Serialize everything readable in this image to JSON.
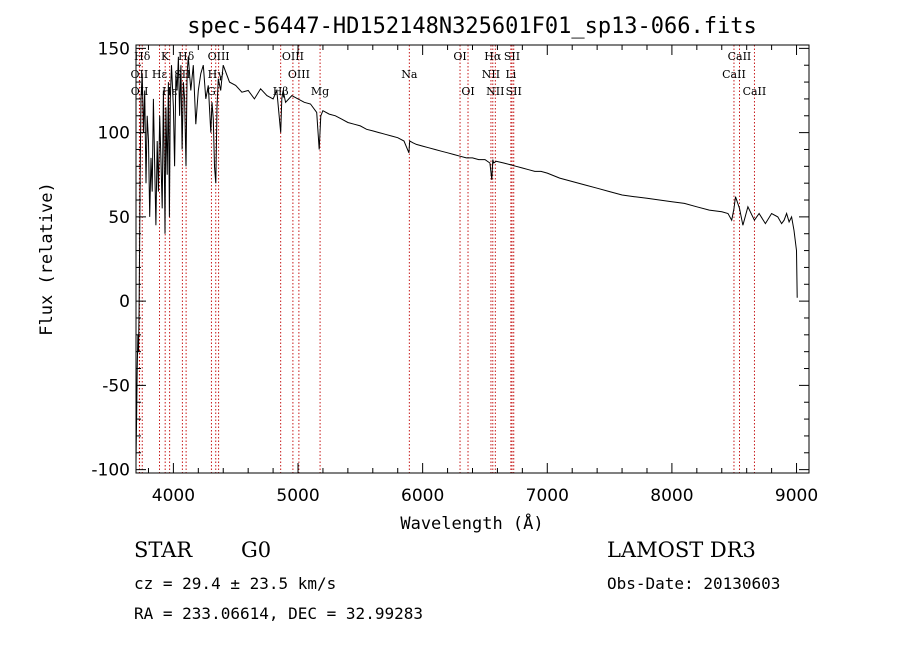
{
  "info": {
    "object_class": "STAR",
    "subclass": "G0",
    "redshift_text": "cz = 29.4 ± 23.5 km/s",
    "coords_text": "RA = 233.06614, DEC =  32.99283",
    "survey": "LAMOST DR3",
    "obs_date_text": "Obs-Date: 20130603"
  },
  "chart_data": {
    "type": "line",
    "title": "spec-56447-HD152148N325601F01_sp13-066.fits",
    "xlabel": "Wavelength (Å)",
    "ylabel": "Flux (relative)",
    "xlim": [
      3700,
      9100
    ],
    "ylim": [
      -102,
      152
    ],
    "xticks": [
      4000,
      5000,
      6000,
      7000,
      8000,
      9000
    ],
    "yticks": [
      -100,
      -50,
      0,
      50,
      100,
      150
    ],
    "line_color": "#000000",
    "marker_color": "#c00000",
    "series": [
      {
        "name": "flux",
        "x": [
          3700,
          3705,
          3710,
          3715,
          3720,
          3725,
          3730,
          3735,
          3740,
          3750,
          3760,
          3770,
          3780,
          3790,
          3800,
          3810,
          3820,
          3830,
          3840,
          3850,
          3860,
          3870,
          3880,
          3890,
          3900,
          3910,
          3920,
          3930,
          3933,
          3940,
          3950,
          3960,
          3968,
          3975,
          3985,
          4000,
          4010,
          4020,
          4030,
          4040,
          4050,
          4060,
          4070,
          4080,
          4090,
          4101,
          4110,
          4120,
          4140,
          4160,
          4180,
          4200,
          4220,
          4240,
          4260,
          4280,
          4300,
          4310,
          4320,
          4330,
          4340,
          4350,
          4360,
          4380,
          4400,
          4450,
          4500,
          4550,
          4600,
          4650,
          4700,
          4750,
          4800,
          4830,
          4861,
          4870,
          4880,
          4900,
          4950,
          5000,
          5050,
          5100,
          5150,
          5170,
          5183,
          5200,
          5250,
          5300,
          5350,
          5400,
          5450,
          5500,
          5550,
          5600,
          5650,
          5700,
          5750,
          5800,
          5850,
          5890,
          5896,
          5920,
          5950,
          6000,
          6050,
          6100,
          6150,
          6200,
          6250,
          6300,
          6350,
          6400,
          6450,
          6500,
          6540,
          6555,
          6563,
          6570,
          6590,
          6650,
          6700,
          6750,
          6800,
          6850,
          6900,
          6950,
          7000,
          7100,
          7200,
          7300,
          7400,
          7500,
          7600,
          7700,
          7800,
          7900,
          8000,
          8100,
          8200,
          8300,
          8400,
          8450,
          8480,
          8498,
          8510,
          8542,
          8570,
          8610,
          8662,
          8700,
          8750,
          8800,
          8850,
          8880,
          8900,
          8920,
          8940,
          8960,
          8980,
          9000,
          9005
        ],
        "values": [
          -95,
          -70,
          -40,
          -20,
          -30,
          -5,
          40,
          90,
          120,
          135,
          100,
          125,
          70,
          110,
          95,
          50,
          85,
          65,
          120,
          80,
          45,
          95,
          65,
          110,
          85,
          55,
          125,
          60,
          40,
          115,
          75,
          130,
          50,
          120,
          140,
          115,
          80,
          135,
          125,
          145,
          110,
          140,
          90,
          130,
          120,
          80,
          135,
          145,
          125,
          140,
          105,
          125,
          135,
          140,
          120,
          128,
          100,
          118,
          108,
          80,
          70,
          115,
          132,
          125,
          140,
          130,
          128,
          124,
          125,
          120,
          126,
          122,
          120,
          125,
          100,
          120,
          125,
          118,
          122,
          120,
          118,
          117,
          112,
          90,
          110,
          113,
          111,
          110,
          108,
          106,
          105,
          104,
          102,
          101,
          100,
          99,
          98,
          97,
          95,
          88,
          95,
          94,
          93,
          92,
          91,
          90,
          89,
          88,
          87,
          86,
          85,
          85,
          84,
          84,
          82,
          72,
          84,
          82,
          83,
          82,
          81,
          80,
          79,
          78,
          77,
          77,
          76,
          73,
          71,
          69,
          67,
          65,
          63,
          62,
          61,
          60,
          59,
          58,
          56,
          54,
          53,
          52,
          48,
          55,
          62,
          55,
          45,
          56,
          48,
          52,
          46,
          52,
          50,
          46,
          48,
          52,
          47,
          50,
          42,
          30,
          2
        ]
      }
    ],
    "line_markers": [
      {
        "name": "Hδ",
        "x": 3750,
        "row": 0
      },
      {
        "name": "OII",
        "x": 3727,
        "row": 1
      },
      {
        "name": "OII",
        "x": 3729,
        "row": 2
      },
      {
        "name": "K",
        "x": 3934,
        "row": 0
      },
      {
        "name": "Hε",
        "x": 3889,
        "row": 1
      },
      {
        "name": "Hε",
        "x": 3970,
        "row": 2
      },
      {
        "name": "SII",
        "x": 4072,
        "row": 1
      },
      {
        "name": "Hδ",
        "x": 4102,
        "row": 0
      },
      {
        "name": "OIII",
        "x": 4363,
        "row": 0
      },
      {
        "name": "Hγ",
        "x": 4340,
        "row": 1
      },
      {
        "name": "G",
        "x": 4305,
        "row": 2
      },
      {
        "name": "OIII",
        "x": 4959,
        "row": 0
      },
      {
        "name": "OIII",
        "x": 5007,
        "row": 1
      },
      {
        "name": "Hβ",
        "x": 4861,
        "row": 2
      },
      {
        "name": "Mg",
        "x": 5177,
        "row": 2
      },
      {
        "name": "Na",
        "x": 5893,
        "row": 1
      },
      {
        "name": "OI",
        "x": 6300,
        "row": 0
      },
      {
        "name": "OI",
        "x": 6364,
        "row": 2
      },
      {
        "name": "Hα",
        "x": 6563,
        "row": 0
      },
      {
        "name": "NII",
        "x": 6548,
        "row": 1
      },
      {
        "name": "NII",
        "x": 6583,
        "row": 2
      },
      {
        "name": "SII",
        "x": 6717,
        "row": 0
      },
      {
        "name": "Li",
        "x": 6708,
        "row": 1
      },
      {
        "name": "SII",
        "x": 6731,
        "row": 2
      },
      {
        "name": "CaII",
        "x": 8542,
        "row": 0
      },
      {
        "name": "CaII",
        "x": 8498,
        "row": 1
      },
      {
        "name": "CaII",
        "x": 8662,
        "row": 2
      }
    ]
  }
}
